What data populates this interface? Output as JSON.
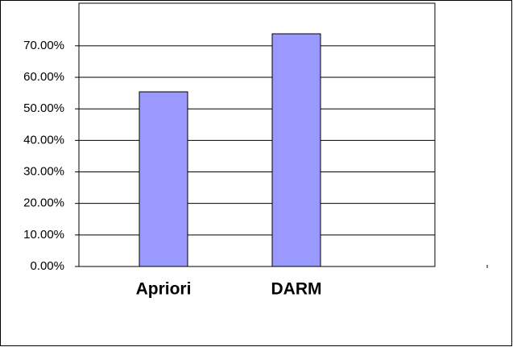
{
  "chart_data": {
    "type": "bar",
    "categories": [
      "Apriori",
      "DARM"
    ],
    "values": [
      55.4,
      73.8
    ],
    "color": "#9999ff",
    "ylim": [
      0,
      83.5
    ],
    "yticks": [
      {
        "value": 0,
        "label": "0.00%"
      },
      {
        "value": 10,
        "label": "10.00%"
      },
      {
        "value": 20,
        "label": "20.00%"
      },
      {
        "value": 30,
        "label": "30.00%"
      },
      {
        "value": 40,
        "label": "40.00%"
      },
      {
        "value": 50,
        "label": "50.00%"
      },
      {
        "value": 60,
        "label": "60.00%"
      },
      {
        "value": 70,
        "label": "70.00%"
      }
    ],
    "grid": true
  }
}
